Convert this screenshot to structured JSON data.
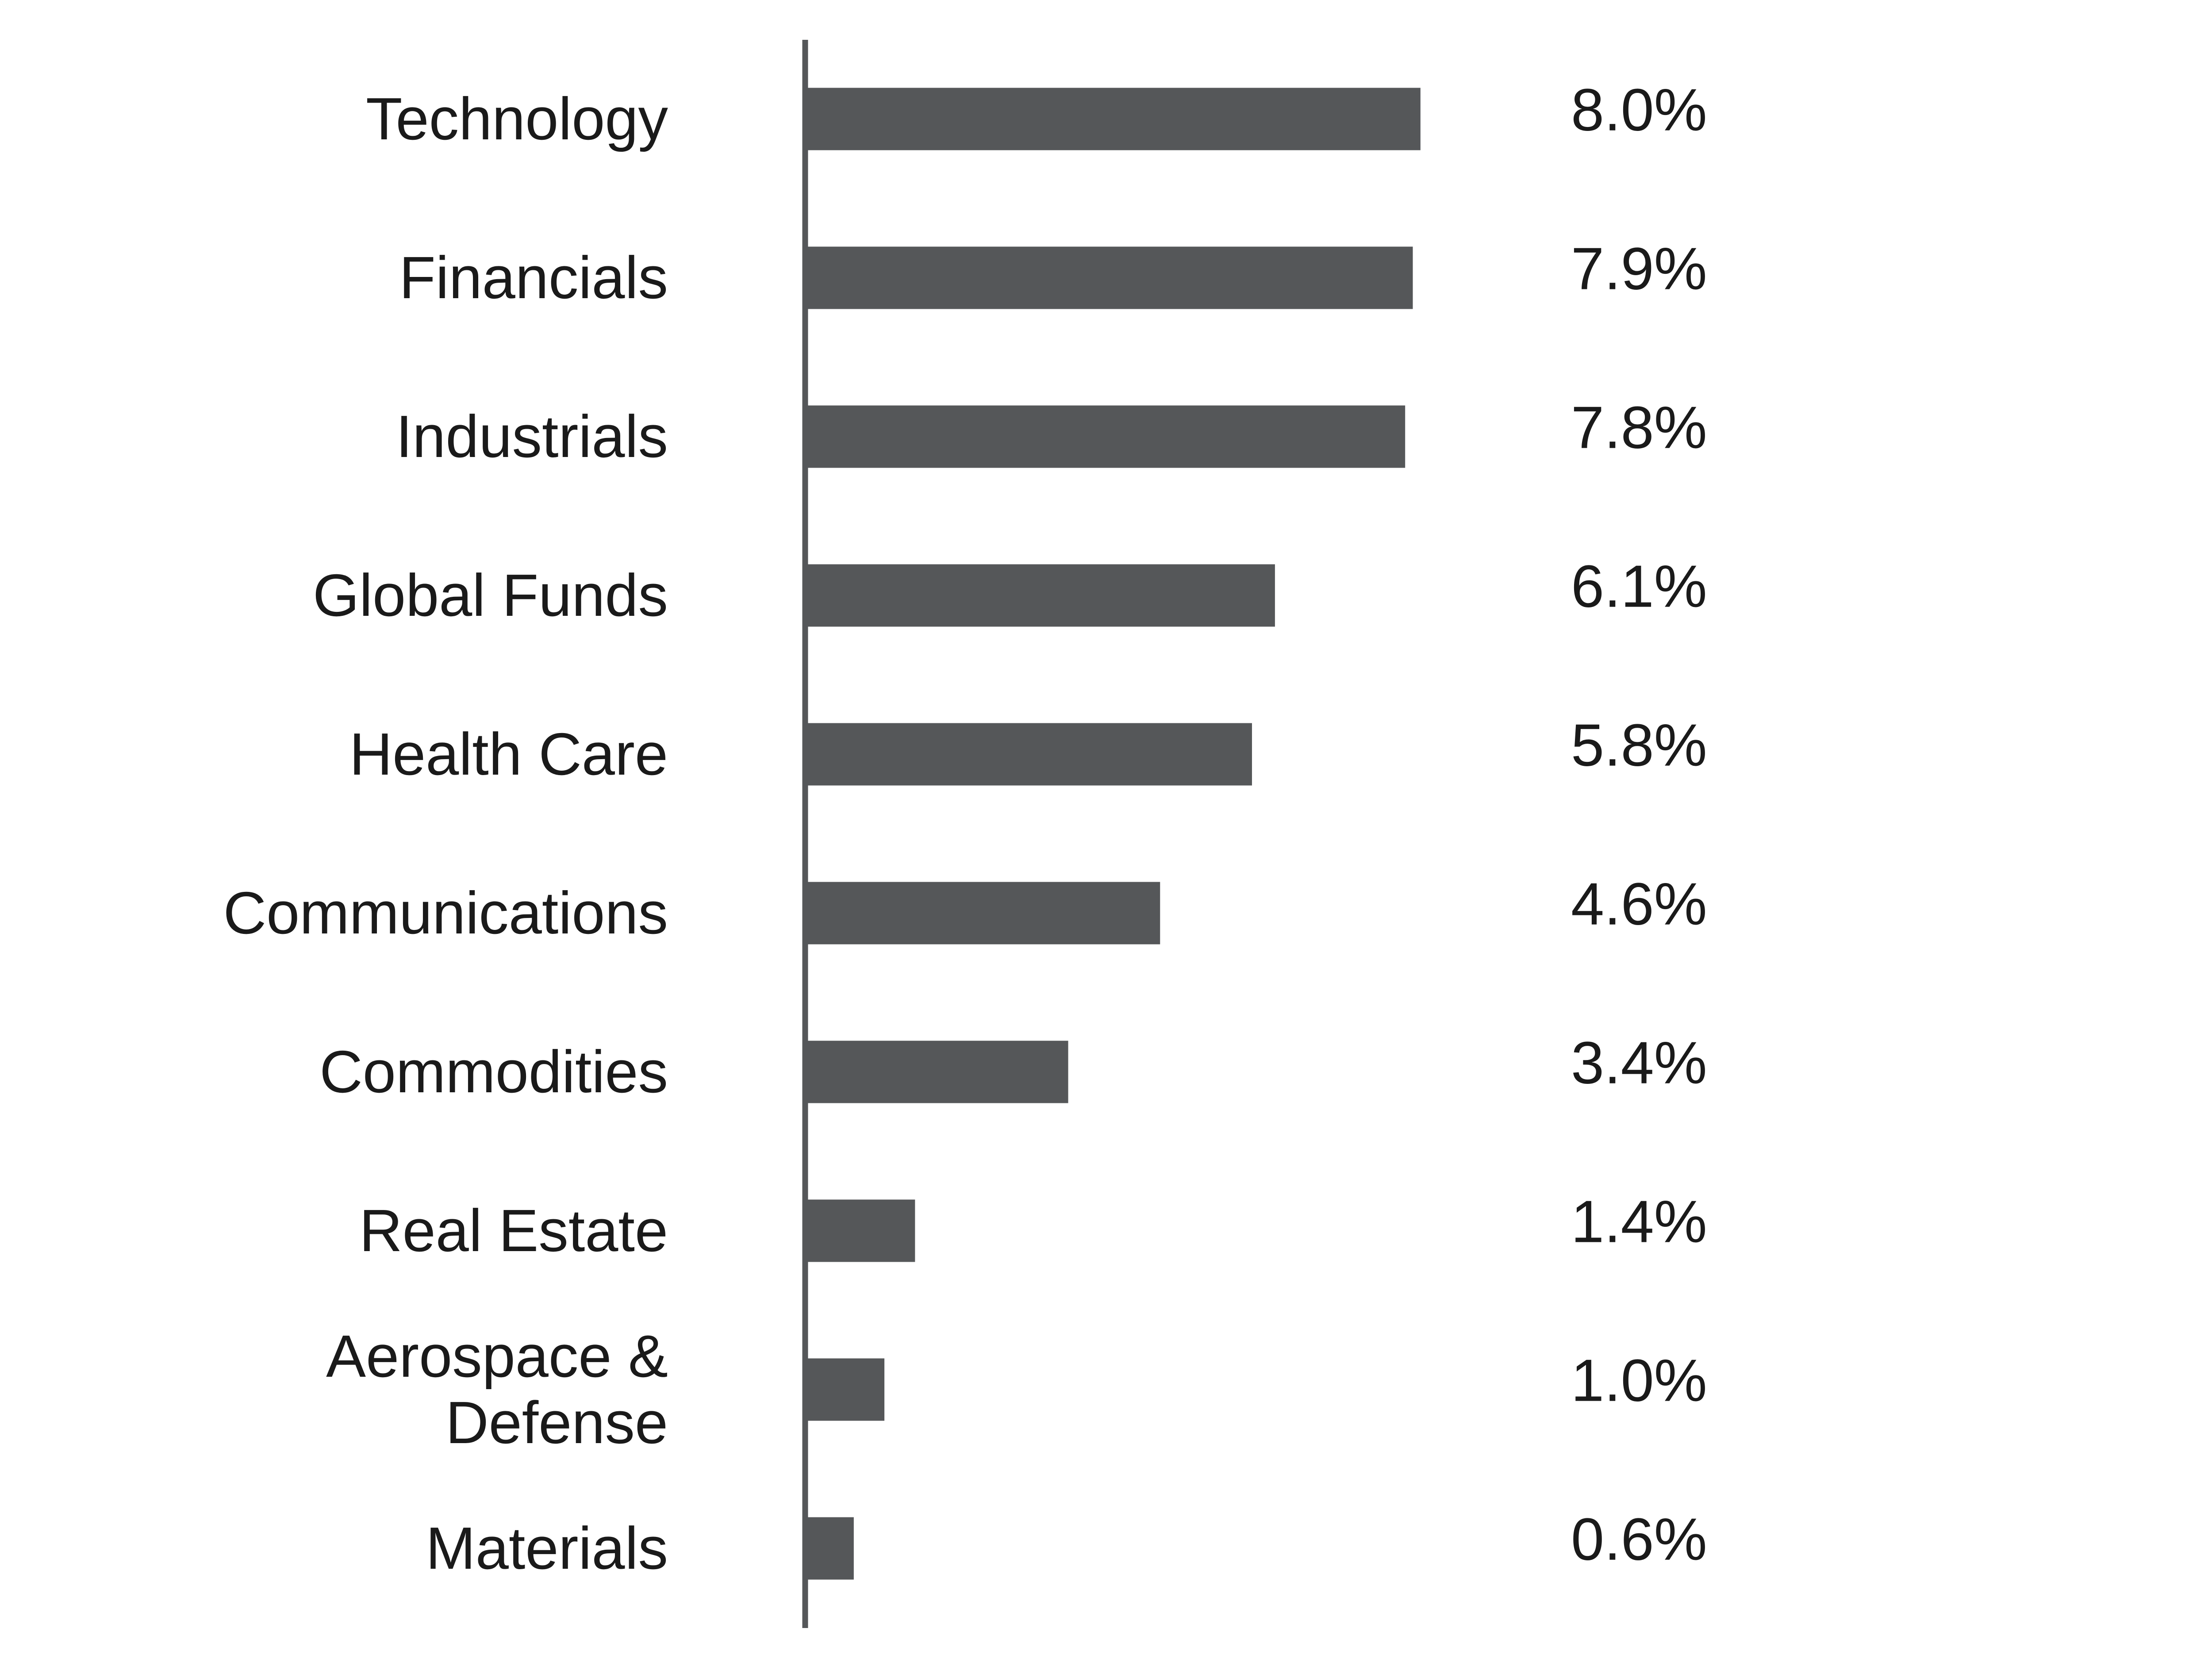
{
  "chart_data": {
    "type": "hbar",
    "categories": [
      "Technology",
      "Financials",
      "Industrials",
      "Global Funds",
      "Health Care",
      "Communications",
      "Commodities",
      "Real Estate",
      "Aerospace & Defense",
      "Materials"
    ],
    "values": [
      8.0,
      7.9,
      7.8,
      6.1,
      5.8,
      4.6,
      3.4,
      1.4,
      1.0,
      0.6
    ],
    "value_labels": [
      "8.0%",
      "7.9%",
      "7.8%",
      "6.1%",
      "5.8%",
      "4.6%",
      "3.4%",
      "1.4%",
      "1.0%",
      "0.6%"
    ],
    "color": "#555759",
    "xlim": [
      0,
      10
    ]
  }
}
